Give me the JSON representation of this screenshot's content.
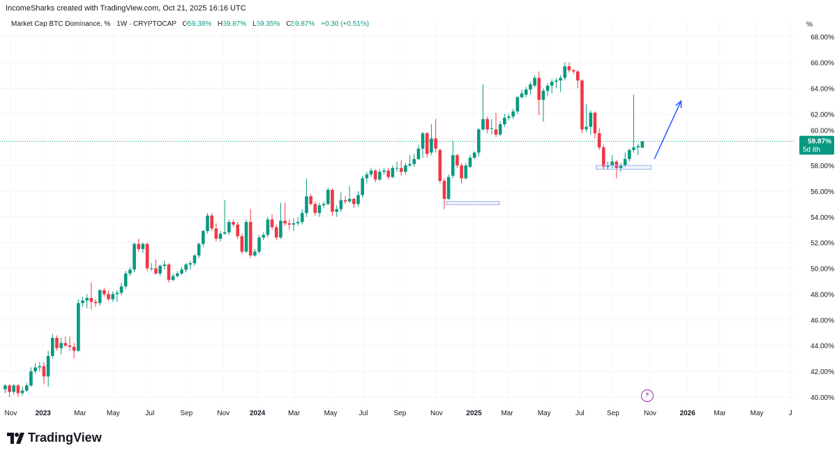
{
  "header": {
    "credit": "IncomeSharks created with TradingView.com, Oct 21, 2025 16:16 UTC",
    "symbol": "Market Cap BTC Dominance, % · 1W · CRYPTOCAP",
    "open_label": "O",
    "open": "59.38%",
    "high_label": "H",
    "high": "59.87%",
    "low_label": "L",
    "low": "59.35%",
    "close_label": "C",
    "close": "59.87%",
    "change": "+0.30 (+0.51%)",
    "unit": "%"
  },
  "price_label": {
    "value": "59.87%",
    "countdown": "5d 8h"
  },
  "branding": {
    "name": "TradingView"
  },
  "colors": {
    "up": "#089981",
    "down": "#f23645",
    "annotation": "#2962ff",
    "box": "#a7b8f0"
  },
  "chart_data": {
    "type": "candlestick",
    "title": "Market Cap BTC Dominance, % · 1W · CRYPTOCAP",
    "ylabel": "%",
    "ylim": [
      39.4,
      69.5
    ],
    "xlim": [
      -1.2,
      183.5
    ],
    "yticks": [
      40,
      42,
      44,
      46,
      48,
      50,
      52,
      54,
      56,
      58,
      60,
      62,
      64,
      66,
      68
    ],
    "ytick_labels": [
      "40.00%",
      "42.00%",
      "44.00%",
      "46.00%",
      "48.00%",
      "50.00%",
      "52.00%",
      "54.00%",
      "56.00%",
      "58.00%",
      "60.00%",
      "62.00%",
      "64.00%",
      "66.00%",
      "68.00%"
    ],
    "xticks": [
      {
        "label": "Nov",
        "week": 1.3,
        "bold": false
      },
      {
        "label": "2023",
        "week": 8.8,
        "bold": true
      },
      {
        "label": "Mar",
        "week": 17.4,
        "bold": false
      },
      {
        "label": "May",
        "week": 25.1,
        "bold": false
      },
      {
        "label": "Jul",
        "week": 33.6,
        "bold": false
      },
      {
        "label": "Sep",
        "week": 42.1,
        "bold": false
      },
      {
        "label": "Nov",
        "week": 50.7,
        "bold": false
      },
      {
        "label": "2024",
        "week": 58.6,
        "bold": true
      },
      {
        "label": "Mar",
        "week": 67.1,
        "bold": false
      },
      {
        "label": "May",
        "week": 75.6,
        "bold": false
      },
      {
        "label": "Jul",
        "week": 83.2,
        "bold": false
      },
      {
        "label": "Sep",
        "week": 91.7,
        "bold": false
      },
      {
        "label": "Nov",
        "week": 100.2,
        "bold": false
      },
      {
        "label": "2025",
        "week": 108.9,
        "bold": true
      },
      {
        "label": "Mar",
        "week": 116.6,
        "bold": false
      },
      {
        "label": "May",
        "week": 125.2,
        "bold": false
      },
      {
        "label": "Jul",
        "week": 133.5,
        "bold": false
      },
      {
        "label": "Sep",
        "week": 141.2,
        "bold": false
      },
      {
        "label": "Nov",
        "week": 149.8,
        "bold": false
      },
      {
        "label": "2026",
        "week": 158.5,
        "bold": true
      },
      {
        "label": "Mar",
        "week": 166.0,
        "bold": false
      },
      {
        "label": "May",
        "week": 174.6,
        "bold": false
      },
      {
        "label": "J",
        "week": 182.4,
        "bold": false
      }
    ],
    "last_price": 59.87,
    "ohlc": [
      [
        40.6,
        41.0,
        40.3,
        40.9
      ],
      [
        40.9,
        41.0,
        40.0,
        40.4
      ],
      [
        40.4,
        41.0,
        40.2,
        40.9
      ],
      [
        40.9,
        41.0,
        40.0,
        40.3
      ],
      [
        40.3,
        40.8,
        40.1,
        40.5
      ],
      [
        40.5,
        41.1,
        40.4,
        40.9
      ],
      [
        40.9,
        42.3,
        40.8,
        42.0
      ],
      [
        42.0,
        42.6,
        41.8,
        42.3
      ],
      [
        42.3,
        42.7,
        42.0,
        42.4
      ],
      [
        42.4,
        42.7,
        41.0,
        41.6
      ],
      [
        41.6,
        43.6,
        40.8,
        43.2
      ],
      [
        43.2,
        44.9,
        43.0,
        44.6
      ],
      [
        44.6,
        44.8,
        43.6,
        43.8
      ],
      [
        43.8,
        44.6,
        43.3,
        44.2
      ],
      [
        44.2,
        44.7,
        43.9,
        44.0
      ],
      [
        44.0,
        44.7,
        43.6,
        43.9
      ],
      [
        43.9,
        44.2,
        43.0,
        43.6
      ],
      [
        43.6,
        47.6,
        43.5,
        47.3
      ],
      [
        47.3,
        47.8,
        47.0,
        47.5
      ],
      [
        47.5,
        48.0,
        46.9,
        47.7
      ],
      [
        47.7,
        48.9,
        46.8,
        47.4
      ],
      [
        47.4,
        47.6,
        47.0,
        47.3
      ],
      [
        47.3,
        48.4,
        47.1,
        48.3
      ],
      [
        48.3,
        48.5,
        47.8,
        48.0
      ],
      [
        48.0,
        48.3,
        47.5,
        47.6
      ],
      [
        47.6,
        48.2,
        47.4,
        48.0
      ],
      [
        48.0,
        48.3,
        47.4,
        48.1
      ],
      [
        48.1,
        48.9,
        47.9,
        48.6
      ],
      [
        48.6,
        49.8,
        48.4,
        49.6
      ],
      [
        49.6,
        50.1,
        49.4,
        49.9
      ],
      [
        49.9,
        52.0,
        49.7,
        51.9
      ],
      [
        51.9,
        52.3,
        51.3,
        51.5
      ],
      [
        51.5,
        52.0,
        51.2,
        51.9
      ],
      [
        51.9,
        52.0,
        49.8,
        50.0
      ],
      [
        50.0,
        50.4,
        49.8,
        50.0
      ],
      [
        50.0,
        50.7,
        49.5,
        49.6
      ],
      [
        49.6,
        50.3,
        49.4,
        50.2
      ],
      [
        50.2,
        50.6,
        49.9,
        50.3
      ],
      [
        50.3,
        50.4,
        48.9,
        49.1
      ],
      [
        49.1,
        49.6,
        49.0,
        49.4
      ],
      [
        49.4,
        49.8,
        49.3,
        49.6
      ],
      [
        49.6,
        50.1,
        49.5,
        49.9
      ],
      [
        49.9,
        50.4,
        49.7,
        50.3
      ],
      [
        50.3,
        50.6,
        49.9,
        50.4
      ],
      [
        50.4,
        51.1,
        50.2,
        51.0
      ],
      [
        51.0,
        52.0,
        50.8,
        51.9
      ],
      [
        51.9,
        53.0,
        51.7,
        52.9
      ],
      [
        52.9,
        54.3,
        52.7,
        54.1
      ],
      [
        54.1,
        54.3,
        52.9,
        53.1
      ],
      [
        53.1,
        53.5,
        52.1,
        52.3
      ],
      [
        52.3,
        52.9,
        52.1,
        52.7
      ],
      [
        52.7,
        55.3,
        52.6,
        52.8
      ],
      [
        52.8,
        53.8,
        52.6,
        53.6
      ],
      [
        53.6,
        53.8,
        53.2,
        53.4
      ],
      [
        53.4,
        53.6,
        52.3,
        52.5
      ],
      [
        52.5,
        52.7,
        51.1,
        51.3
      ],
      [
        51.3,
        53.8,
        51.2,
        53.6
      ],
      [
        53.6,
        54.6,
        50.8,
        51.0
      ],
      [
        51.0,
        51.5,
        50.9,
        51.3
      ],
      [
        51.3,
        52.6,
        51.1,
        52.4
      ],
      [
        52.4,
        52.8,
        52.2,
        52.6
      ],
      [
        52.6,
        54.0,
        52.4,
        53.8
      ],
      [
        53.8,
        54.2,
        53.0,
        53.2
      ],
      [
        53.2,
        53.4,
        52.2,
        52.4
      ],
      [
        52.4,
        55.1,
        52.3,
        53.7
      ],
      [
        53.7,
        55.1,
        53.3,
        53.5
      ],
      [
        53.5,
        53.8,
        53.0,
        53.4
      ],
      [
        53.4,
        53.9,
        52.9,
        53.5
      ],
      [
        53.5,
        54.0,
        53.3,
        53.6
      ],
      [
        53.6,
        54.6,
        53.4,
        54.3
      ],
      [
        54.3,
        57.0,
        54.0,
        55.6
      ],
      [
        55.6,
        55.8,
        54.9,
        55.0
      ],
      [
        55.0,
        55.2,
        54.1,
        54.3
      ],
      [
        54.3,
        55.1,
        54.0,
        54.9
      ],
      [
        54.9,
        55.2,
        54.7,
        55.0
      ],
      [
        55.0,
        56.3,
        54.9,
        56.1
      ],
      [
        56.1,
        56.2,
        54.1,
        54.4
      ],
      [
        54.4,
        54.9,
        54.0,
        54.6
      ],
      [
        54.6,
        55.9,
        54.4,
        55.3
      ],
      [
        55.3,
        55.6,
        55.0,
        55.2
      ],
      [
        55.2,
        56.4,
        55.1,
        55.4
      ],
      [
        55.4,
        55.5,
        54.7,
        55.0
      ],
      [
        55.0,
        56.0,
        54.8,
        55.7
      ],
      [
        55.7,
        57.2,
        55.5,
        57.0
      ],
      [
        57.0,
        57.5,
        56.6,
        57.3
      ],
      [
        57.3,
        57.8,
        57.1,
        57.6
      ],
      [
        57.6,
        57.7,
        56.7,
        56.9
      ],
      [
        56.9,
        57.7,
        56.8,
        57.5
      ],
      [
        57.5,
        57.8,
        57.3,
        57.6
      ],
      [
        57.6,
        57.8,
        56.9,
        57.1
      ],
      [
        57.1,
        58.0,
        57.0,
        57.8
      ],
      [
        57.8,
        58.3,
        57.5,
        57.8
      ],
      [
        57.8,
        58.4,
        57.2,
        57.5
      ],
      [
        57.5,
        58.2,
        57.3,
        58.0
      ],
      [
        58.0,
        58.8,
        57.9,
        58.1
      ],
      [
        58.1,
        58.9,
        57.9,
        58.5
      ],
      [
        58.5,
        59.6,
        58.4,
        59.3
      ],
      [
        59.3,
        60.6,
        58.6,
        60.5
      ],
      [
        60.5,
        60.6,
        58.6,
        58.9
      ],
      [
        59.0,
        61.2,
        58.8,
        60.1
      ],
      [
        60.1,
        61.6,
        59.0,
        59.3
      ],
      [
        59.2,
        59.3,
        56.6,
        56.8
      ],
      [
        56.8,
        57.0,
        54.6,
        55.4
      ],
      [
        55.4,
        57.3,
        55.3,
        57.1
      ],
      [
        57.2,
        59.9,
        57.0,
        58.8
      ],
      [
        58.8,
        58.9,
        57.8,
        58.0
      ],
      [
        58.0,
        58.2,
        56.6,
        57.0
      ],
      [
        57.0,
        58.2,
        56.9,
        58.0
      ],
      [
        57.9,
        58.8,
        57.8,
        58.6
      ],
      [
        58.6,
        59.1,
        58.5,
        59.0
      ],
      [
        59.0,
        60.9,
        58.7,
        60.8
      ],
      [
        60.8,
        64.3,
        60.7,
        61.6
      ],
      [
        61.6,
        61.8,
        60.5,
        60.8
      ],
      [
        60.9,
        61.6,
        60.4,
        60.9
      ],
      [
        60.8,
        62.1,
        60.2,
        60.4
      ],
      [
        60.4,
        61.4,
        60.3,
        61.2
      ],
      [
        61.2,
        62.0,
        61.0,
        61.7
      ],
      [
        61.7,
        62.0,
        61.5,
        61.8
      ],
      [
        61.8,
        62.4,
        61.6,
        62.2
      ],
      [
        62.2,
        63.4,
        62.0,
        63.3
      ],
      [
        63.3,
        63.9,
        63.2,
        63.6
      ],
      [
        63.5,
        64.1,
        63.3,
        63.9
      ],
      [
        63.9,
        64.5,
        63.5,
        64.3
      ],
      [
        64.2,
        65.0,
        64.1,
        64.8
      ],
      [
        64.8,
        65.3,
        61.9,
        63.1
      ],
      [
        63.1,
        64.0,
        61.4,
        63.8
      ],
      [
        63.8,
        64.4,
        63.4,
        64.2
      ],
      [
        64.2,
        64.7,
        63.6,
        64.5
      ],
      [
        64.5,
        64.8,
        64.0,
        64.6
      ],
      [
        64.6,
        65.0,
        63.7,
        64.8
      ],
      [
        64.8,
        66.0,
        64.6,
        65.7
      ],
      [
        65.7,
        66.0,
        65.2,
        65.4
      ],
      [
        65.4,
        65.5,
        65.1,
        65.3
      ],
      [
        65.3,
        65.4,
        64.0,
        64.6
      ],
      [
        64.6,
        64.7,
        60.5,
        60.8
      ],
      [
        60.8,
        62.8,
        60.6,
        61.0
      ],
      [
        61.0,
        62.3,
        60.4,
        62.1
      ],
      [
        62.1,
        62.2,
        60.1,
        60.5
      ],
      [
        60.5,
        60.9,
        59.2,
        59.4
      ],
      [
        59.4,
        59.6,
        57.7,
        57.9
      ],
      [
        57.9,
        58.3,
        57.7,
        58.0
      ],
      [
        58.0,
        58.8,
        57.8,
        58.3
      ],
      [
        58.3,
        58.4,
        57.0,
        57.8
      ],
      [
        57.8,
        58.2,
        57.5,
        58.0
      ],
      [
        58.0,
        59.0,
        57.9,
        58.5
      ],
      [
        58.5,
        59.3,
        58.3,
        59.2
      ],
      [
        59.2,
        63.5,
        59.0,
        59.4
      ],
      [
        59.4,
        59.7,
        58.8,
        59.5
      ],
      [
        59.38,
        59.87,
        59.35,
        59.87
      ]
    ],
    "annotations": {
      "support_boxes": [
        {
          "from_week": 102.5,
          "to_week": 114.8,
          "top": 55.2,
          "bottom": 54.95
        },
        {
          "from_week": 137.3,
          "to_week": 150.0,
          "top": 58.0,
          "bottom": 57.7
        }
      ],
      "arrow": {
        "from_week": 150.8,
        "from_value": 58.5,
        "to_week": 157.0,
        "to_value": 63.0
      }
    }
  }
}
